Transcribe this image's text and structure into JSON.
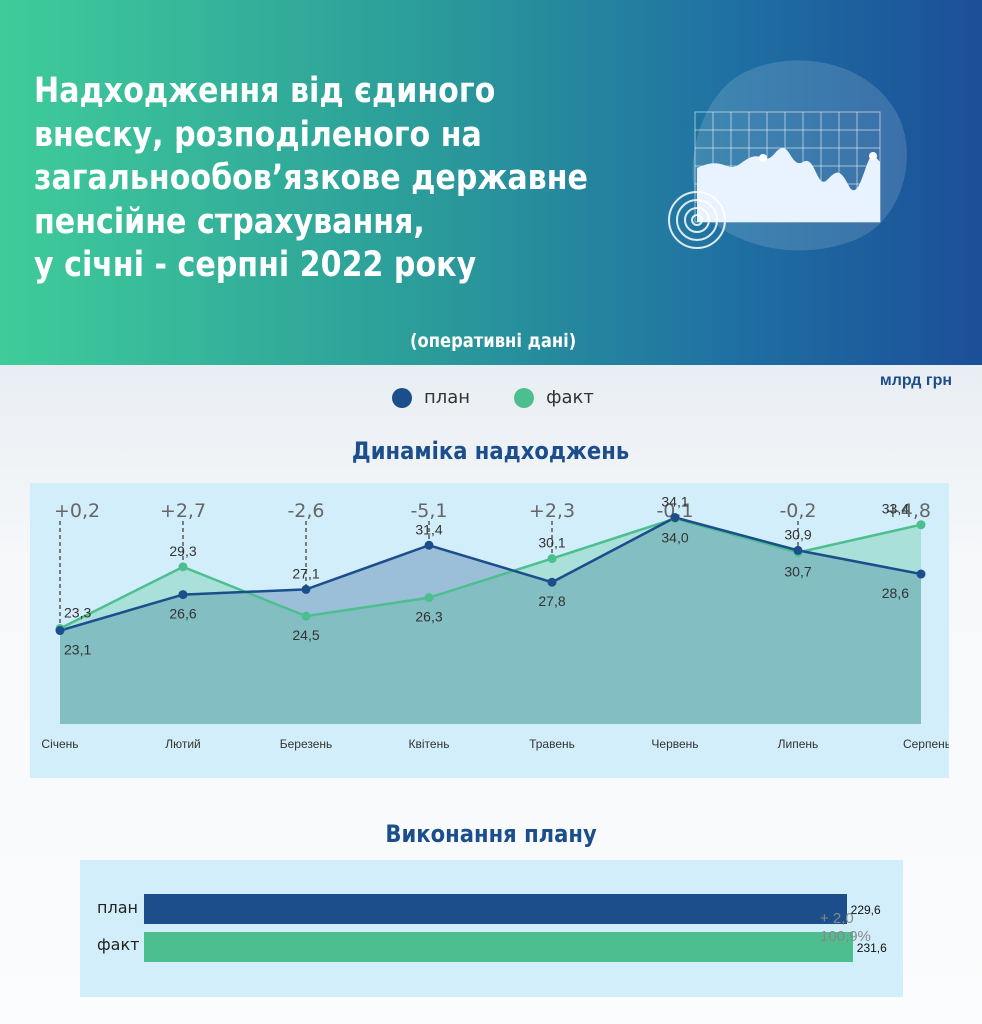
{
  "header": {
    "title_lines": [
      "Надходження від єдиного",
      "внеску, розподіленого на",
      "загальнообов’язкове державне",
      "пенсійне страхування,",
      "у січні - серпні 2022 року"
    ],
    "subtitle": "(оперативні дані)"
  },
  "unit": "млрд грн",
  "legend": {
    "plan": "план",
    "fact": "факт"
  },
  "colors": {
    "plan": "#1c4e8c",
    "fact": "#4dbf8f",
    "panel": "#d3eefb"
  },
  "chart_title": "Динаміка надходжень",
  "chart_data": {
    "type": "line",
    "title": "Динаміка надходжень",
    "categories": [
      "Січень",
      "Лютий",
      "Березень",
      "Квітень",
      "Травень",
      "Червень",
      "Липень",
      "Серпень"
    ],
    "series": [
      {
        "name": "план",
        "values": [
          23.1,
          26.6,
          27.1,
          31.4,
          27.8,
          34.1,
          30.9,
          28.6
        ],
        "labels": [
          "23,1",
          "26,6",
          "27,1",
          "31,4",
          "27,8",
          "34,1",
          "30,9",
          "28,6"
        ]
      },
      {
        "name": "факт",
        "values": [
          23.3,
          29.3,
          24.5,
          26.3,
          30.1,
          34.0,
          30.7,
          33.4
        ],
        "labels": [
          "23,3",
          "29,3",
          "24,5",
          "26,3",
          "30,1",
          "34,0",
          "30,7",
          "33,4"
        ]
      }
    ],
    "differences": [
      "+0,2",
      "+2,7",
      "-2,6",
      "-5,1",
      "+2,3",
      "-0,1",
      "-0,2",
      "+4,8"
    ],
    "ylim": [
      14,
      36
    ]
  },
  "bar_title": "Виконання плану",
  "bar_data": {
    "type": "bar",
    "categories": [
      "план",
      "факт"
    ],
    "values": [
      229.6,
      231.6
    ],
    "labels": [
      "229,6",
      "231,6"
    ],
    "difference": "+ 2,0",
    "percent": "100,9%"
  }
}
